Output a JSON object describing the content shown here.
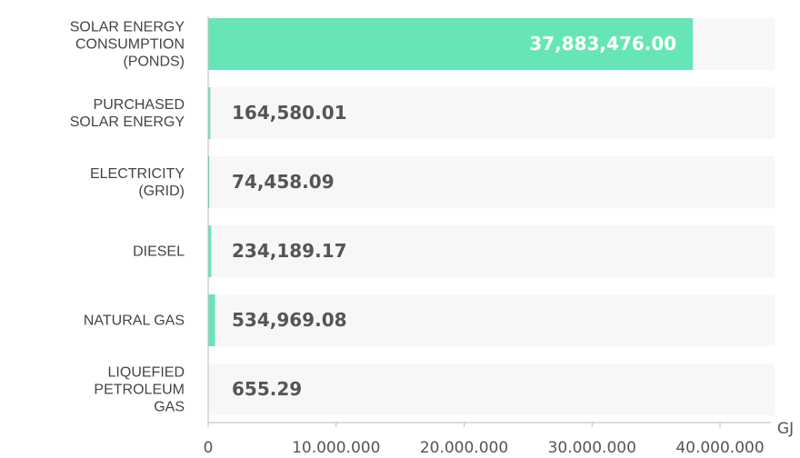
{
  "chart_data": {
    "type": "barh",
    "categories": [
      "SOLAR ENERGY\nCONSUMPTION\n(PONDS)",
      "PURCHASED\nSOLAR ENERGY",
      "ELECTRICITY\n(GRID)",
      "DIESEL",
      "NATURAL GAS",
      "LIQUEFIED\nPETROLEUM\nGAS"
    ],
    "values": [
      37883476,
      164580.01,
      74458.09,
      234189.17,
      534969.08,
      655.29
    ],
    "value_labels": [
      "37,883,476.00",
      "164,580.01",
      "74,458.09",
      "234,189.17",
      "534,969.08",
      "655.29"
    ],
    "colors": [
      "#66e6b6",
      "#66e6b6",
      "#2dd49a",
      "#66e6b6",
      "#66e6b6",
      "#66e6b6"
    ],
    "xlabel": "GJ",
    "xlim": [
      0,
      40000000
    ],
    "xticks": [
      0,
      {
        "value": 10000000,
        "label": "10.000.000"
      },
      {
        "value": 20000000,
        "label": "20.000.000"
      },
      {
        "value": 30000000,
        "label": "30.000.000"
      },
      {
        "value": 40000000,
        "label": "40.000.000"
      }
    ]
  }
}
